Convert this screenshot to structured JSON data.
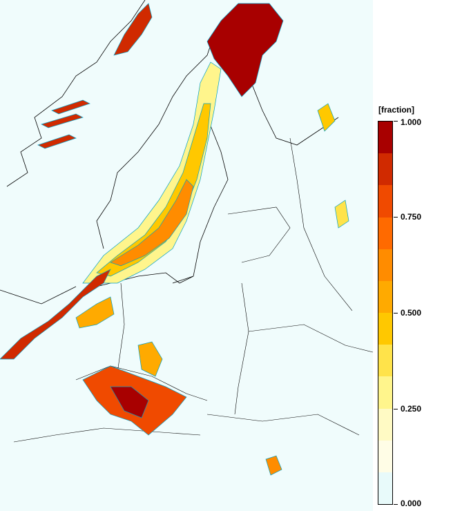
{
  "legend": {
    "title": "[fraction]",
    "tick_labels": [
      "1.000",
      "0.750",
      "0.500",
      "0.250",
      "0.000"
    ],
    "colors": [
      "#a80000",
      "#d02a00",
      "#f04a00",
      "#ff6a00",
      "#ff8c00",
      "#ffaa00",
      "#ffc800",
      "#ffe34a",
      "#fff58c",
      "#fffac4",
      "#fffde6",
      "#e8fafa"
    ]
  },
  "map": {
    "background_color": "#f0fcfc",
    "contour_color": "#00a0c8",
    "border_color": "#000000"
  }
}
